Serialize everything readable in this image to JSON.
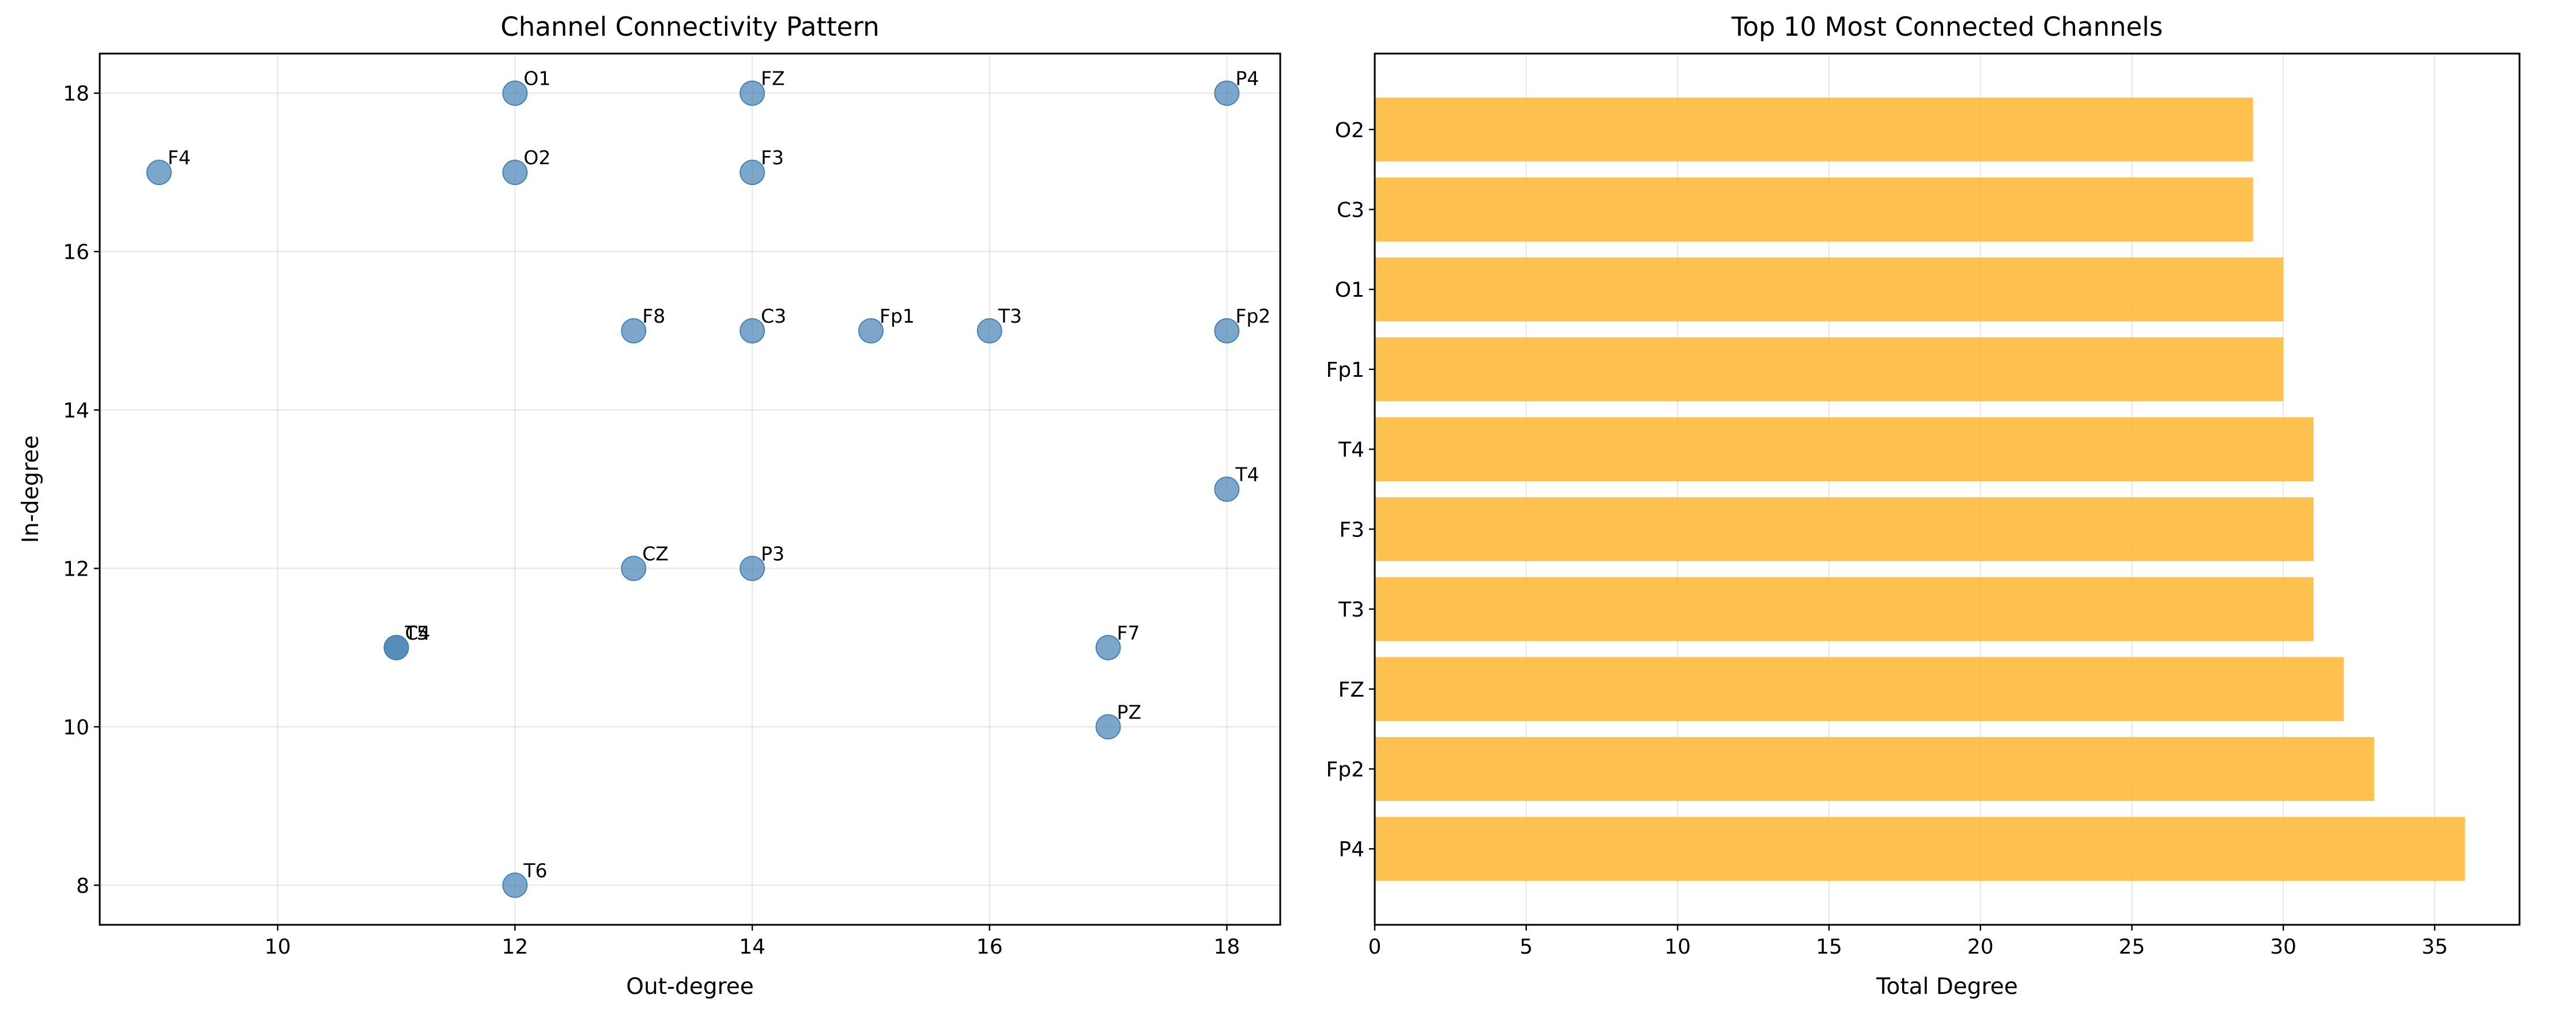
{
  "chart_data": [
    {
      "type": "scatter",
      "title": "Channel Connectivity Pattern",
      "xlabel": "Out-degree",
      "ylabel": "In-degree",
      "xlim": [
        8.5,
        18.45
      ],
      "ylim": [
        7.5,
        18.5
      ],
      "xticks": [
        10,
        12,
        14,
        16,
        18
      ],
      "yticks": [
        8,
        10,
        12,
        14,
        16,
        18
      ],
      "grid": true,
      "color": "#4682b4",
      "points": [
        {
          "label": "O1",
          "x": 12,
          "y": 18
        },
        {
          "label": "FZ",
          "x": 14,
          "y": 18
        },
        {
          "label": "P4",
          "x": 18,
          "y": 18
        },
        {
          "label": "F4",
          "x": 9,
          "y": 17
        },
        {
          "label": "O2",
          "x": 12,
          "y": 17
        },
        {
          "label": "F3",
          "x": 14,
          "y": 17
        },
        {
          "label": "F8",
          "x": 13,
          "y": 15
        },
        {
          "label": "C3",
          "x": 14,
          "y": 15
        },
        {
          "label": "Fp1",
          "x": 15,
          "y": 15
        },
        {
          "label": "T3",
          "x": 16,
          "y": 15
        },
        {
          "label": "Fp2",
          "x": 18,
          "y": 15
        },
        {
          "label": "T4",
          "x": 18,
          "y": 13
        },
        {
          "label": "CZ",
          "x": 13,
          "y": 12
        },
        {
          "label": "P3",
          "x": 14,
          "y": 12
        },
        {
          "label": "T5",
          "x": 11,
          "y": 11
        },
        {
          "label": "C4",
          "x": 11,
          "y": 11
        },
        {
          "label": "F7",
          "x": 17,
          "y": 11
        },
        {
          "label": "PZ",
          "x": 17,
          "y": 10
        },
        {
          "label": "T6",
          "x": 12,
          "y": 8
        }
      ]
    },
    {
      "type": "bar",
      "orientation": "horizontal",
      "title": "Top 10 Most Connected Channels",
      "xlabel": "Total Degree",
      "ylabel": "",
      "xlim": [
        0,
        37.8
      ],
      "xticks": [
        0,
        5,
        10,
        15,
        20,
        25,
        30,
        35
      ],
      "grid": true,
      "color": "#ffb732",
      "categories": [
        "P4",
        "Fp2",
        "FZ",
        "T3",
        "F3",
        "T4",
        "Fp1",
        "O1",
        "C3",
        "O2"
      ],
      "values": [
        36,
        33,
        32,
        31,
        31,
        31,
        30,
        30,
        29,
        29
      ]
    }
  ]
}
